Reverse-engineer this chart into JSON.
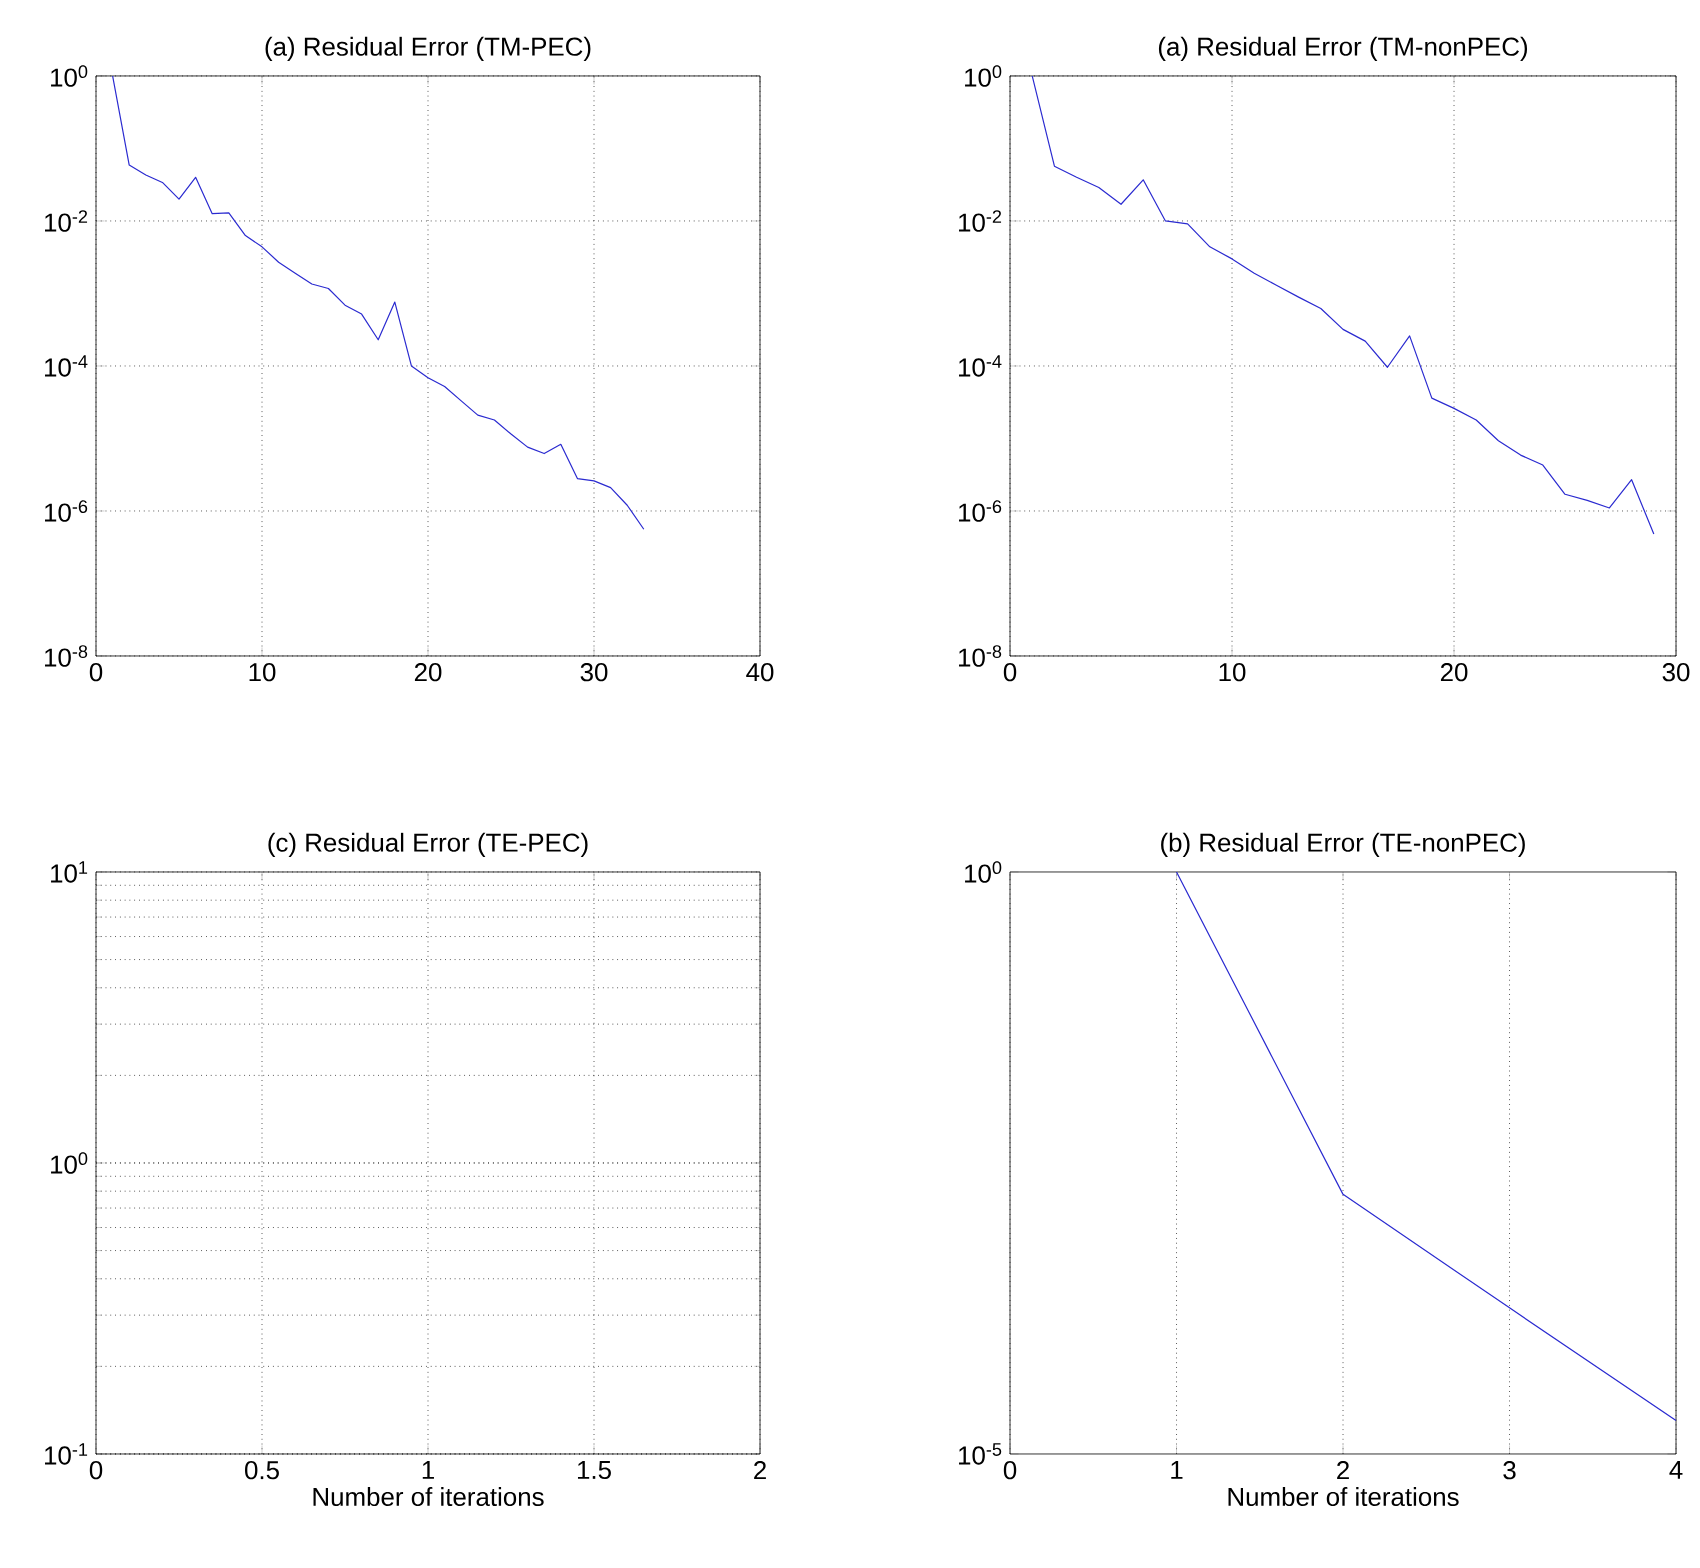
{
  "chart_data": [
    {
      "type": "line",
      "title": "(a) Residual Error (TM-PEC)",
      "log": "y",
      "grid": true,
      "xlim": [
        0,
        40
      ],
      "xticks": [
        0,
        10,
        20,
        30,
        40
      ],
      "ylim": [
        1e-08,
        1
      ],
      "yticks": [
        {
          "value": 1e-08,
          "label": "10$^{-8}$"
        },
        {
          "value": 1e-06,
          "label": "10$^{-6}$"
        },
        {
          "value": 0.0001,
          "label": "10$^{-4}$"
        },
        {
          "value": 0.01,
          "label": "10$^{-2}$"
        },
        {
          "value": 1,
          "label": "10$^{0}$"
        }
      ],
      "series": [
        {
          "color": "#2a2ad0",
          "x": [
            1,
            2,
            3,
            4,
            5,
            6,
            7,
            8,
            9,
            10,
            11,
            12,
            13,
            14,
            15,
            16,
            17,
            18,
            19,
            20,
            21,
            22,
            23,
            24,
            25,
            26,
            27,
            28,
            29,
            30,
            31,
            32,
            33
          ],
          "values": [
            1,
            0.059,
            0.043,
            0.034,
            0.02,
            0.04,
            0.0126,
            0.0129,
            0.0063,
            0.0044,
            0.0027,
            0.0019,
            0.00135,
            0.00117,
            0.00069,
            0.00052,
            0.00023,
            0.00076,
            0.0001,
            6.9e-05,
            5.2e-05,
            3.3e-05,
            2.1e-05,
            1.8e-05,
            1.15e-05,
            7.6e-06,
            6.2e-06,
            8.3e-06,
            2.8e-06,
            2.6e-06,
            2.1e-06,
            1.2e-06,
            5.6e-07
          ]
        }
      ]
    },
    {
      "type": "line",
      "title": "(a) Residual Error (TM-nonPEC)",
      "log": "y",
      "grid": true,
      "xlim": [
        0,
        30
      ],
      "xticks": [
        0,
        10,
        20,
        30
      ],
      "ylim": [
        1e-08,
        1
      ],
      "yticks": [
        {
          "value": 1e-08,
          "label": "10$^{-8}$"
        },
        {
          "value": 1e-06,
          "label": "10$^{-6}$"
        },
        {
          "value": 0.0001,
          "label": "10$^{-4}$"
        },
        {
          "value": 0.01,
          "label": "10$^{-2}$"
        },
        {
          "value": 1,
          "label": "10$^{0}$"
        }
      ],
      "series": [
        {
          "color": "#2a2ad0",
          "x": [
            1,
            2,
            3,
            4,
            5,
            6,
            7,
            8,
            9,
            10,
            11,
            12,
            13,
            14,
            15,
            16,
            17,
            18,
            19,
            20,
            21,
            22,
            23,
            24,
            25,
            26,
            27,
            28,
            29
          ],
          "values": [
            1,
            0.057,
            0.04,
            0.029,
            0.017,
            0.037,
            0.01,
            0.0091,
            0.0044,
            0.003,
            0.0019,
            0.0013,
            0.00089,
            0.00062,
            0.00032,
            0.00022,
            9.6e-05,
            0.00026,
            3.6e-05,
            2.6e-05,
            1.8e-05,
            9.3e-06,
            5.9e-06,
            4.3e-06,
            1.7e-06,
            1.4e-06,
            1.1e-06,
            2.7e-06,
            4.8e-07
          ]
        }
      ]
    },
    {
      "type": "line",
      "title": "(c) Residual Error (TE-PEC)",
      "xlabel": "Number of iterations",
      "log": "y",
      "grid": true,
      "xlim": [
        0,
        2
      ],
      "xticks": [
        0,
        0.5,
        1,
        1.5,
        2
      ],
      "ylim": [
        0.1,
        10
      ],
      "yticks": [
        {
          "value": 0.1,
          "label": "10$^{-1}$"
        },
        {
          "value": 1,
          "label": "10$^{0}$"
        },
        {
          "value": 10,
          "label": "10$^{1}$"
        }
      ]
    },
    {
      "type": "line",
      "title": "(b) Residual Error (TE-nonPEC)",
      "xlabel": "Number of iterations",
      "log": "y",
      "grid": "x",
      "xlim": [
        0,
        4
      ],
      "xticks": [
        0,
        1,
        2,
        3,
        4
      ],
      "ylim": [
        1e-05,
        1
      ],
      "yticks": [
        {
          "value": 1e-05,
          "label": "10$^{-5}$"
        },
        {
          "value": 1,
          "label": "10$^{0}$"
        }
      ],
      "series": [
        {
          "color": "#2a2ad0",
          "x": [
            1,
            2,
            3,
            4
          ],
          "values": [
            1,
            0.0017,
            0.00018,
            1.94e-05
          ]
        }
      ]
    }
  ]
}
